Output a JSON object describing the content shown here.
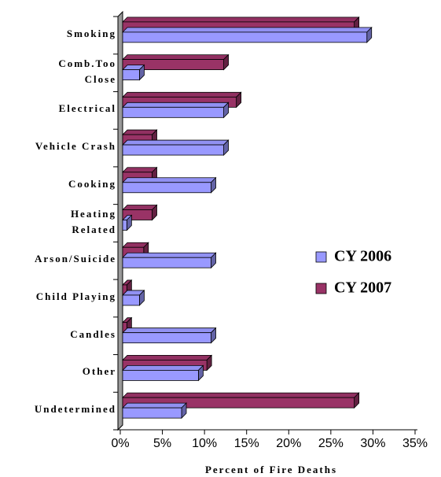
{
  "chart_data": {
    "type": "bar",
    "orientation": "horizontal",
    "categories": [
      "Smoking",
      "Comb.Too Close",
      "Electrical",
      "Vehicle Crash",
      "Cooking",
      "Heating Related",
      "Arson/Suicide",
      "Child Playing",
      "Candles",
      "Other",
      "Undetermined"
    ],
    "series": [
      {
        "name": "CY 2006",
        "color": "#9999ff",
        "values": [
          29,
          2,
          12,
          12,
          10.5,
          0.5,
          10.5,
          2,
          10.5,
          9,
          7
        ]
      },
      {
        "name": "CY 2007",
        "color": "#993366",
        "values": [
          27.5,
          12,
          13.5,
          3.5,
          3.5,
          3.5,
          2.5,
          0.5,
          0.5,
          10,
          27.5
        ]
      }
    ],
    "xlabel": "Percent of Fire Deaths",
    "xlim": [
      0,
      35
    ],
    "xticks": [
      {
        "value": 0,
        "label": "0%"
      },
      {
        "value": 5,
        "label": "5%"
      },
      {
        "value": 10,
        "label": "10%"
      },
      {
        "value": 15,
        "label": "15%"
      },
      {
        "value": 20,
        "label": "20%"
      },
      {
        "value": 25,
        "label": "25%"
      },
      {
        "value": 30,
        "label": "30%"
      },
      {
        "value": 35,
        "label": "35%"
      }
    ],
    "legend": "right"
  }
}
